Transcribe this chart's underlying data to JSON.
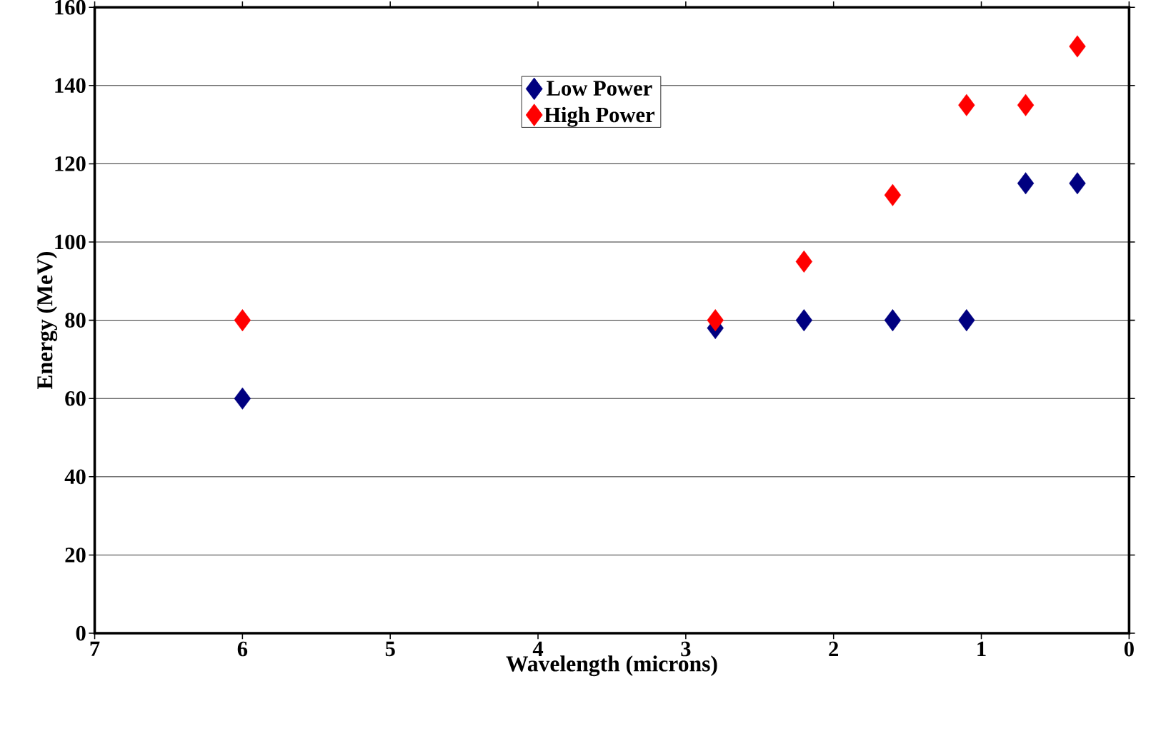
{
  "chart_data": {
    "type": "scatter",
    "xlabel": "Wavelength (microns)",
    "ylabel": "Energy (MeV)",
    "xlim": [
      7,
      0
    ],
    "xticks": [
      7,
      6,
      5,
      4,
      3,
      2,
      1,
      0
    ],
    "ylim": [
      0,
      160
    ],
    "yticks": [
      0,
      20,
      40,
      60,
      80,
      100,
      120,
      140,
      160
    ],
    "grid": "y",
    "legend": "top",
    "marker": "diamond",
    "series": [
      {
        "name": "Low Power",
        "color": "#000080",
        "x": [
          6,
          2.8,
          2.2,
          1.6,
          1.1,
          0.7,
          0.35
        ],
        "values": [
          60,
          78,
          80,
          80,
          80,
          115,
          115
        ]
      },
      {
        "name": "High Power",
        "color": "#ff0000",
        "x": [
          6,
          2.8,
          2.2,
          1.6,
          1.1,
          0.7,
          0.35
        ],
        "values": [
          80,
          80,
          95,
          112,
          135,
          135,
          150
        ]
      }
    ]
  }
}
